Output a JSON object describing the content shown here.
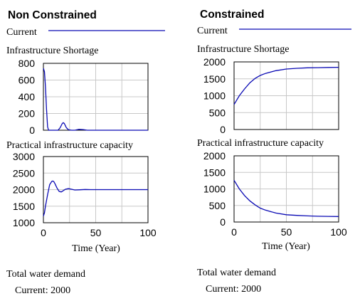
{
  "panels": [
    {
      "title": "Non Constrained",
      "legend_label": "Current",
      "footer_label": "Total water demand",
      "footer_value": "Current: 2000"
    },
    {
      "title": "Constrained",
      "legend_label": "Current",
      "footer_label": "Total water demand",
      "footer_value": "Current: 2000"
    }
  ],
  "chart_data": [
    {
      "type": "line",
      "title": "Infrastructure Shortage",
      "xlabel": "",
      "ylabel": "",
      "xlim": [
        0,
        100
      ],
      "ylim": [
        0,
        800
      ],
      "xticks": [
        0,
        50,
        100
      ],
      "yticks": [
        0,
        200,
        400,
        600,
        800
      ],
      "grid": true,
      "series": [
        {
          "color": "#0a0ab4",
          "x": [
            0,
            1,
            2,
            3,
            4,
            5,
            7,
            10,
            14,
            16,
            18,
            19,
            20,
            22,
            24,
            27,
            30,
            34,
            38,
            42,
            50,
            60,
            70,
            80,
            90,
            100
          ],
          "y": [
            740,
            700,
            520,
            250,
            40,
            0,
            0,
            0,
            0,
            30,
            80,
            90,
            80,
            30,
            5,
            0,
            0,
            10,
            8,
            0,
            0,
            0,
            0,
            0,
            0,
            0
          ]
        }
      ]
    },
    {
      "type": "line",
      "title": "Practical infrastructure capacity",
      "xlabel": "Time (Year)",
      "ylabel": "",
      "xlim": [
        0,
        100
      ],
      "ylim": [
        1000,
        3000
      ],
      "xticks": [
        0,
        50,
        100
      ],
      "yticks": [
        1000,
        1500,
        2000,
        2500,
        3000
      ],
      "grid": true,
      "series": [
        {
          "color": "#0a0ab4",
          "x": [
            0,
            1,
            2,
            4,
            6,
            8,
            9,
            10,
            11,
            13,
            15,
            17,
            19,
            21,
            24,
            27,
            30,
            35,
            40,
            45,
            50,
            60,
            70,
            80,
            90,
            100
          ],
          "y": [
            1200,
            1300,
            1500,
            1850,
            2150,
            2250,
            2260,
            2240,
            2180,
            2050,
            1950,
            1930,
            1970,
            2010,
            2030,
            2010,
            1990,
            1995,
            2005,
            2000,
            2000,
            2000,
            2000,
            2000,
            2000,
            2000
          ]
        }
      ]
    },
    {
      "type": "line",
      "title": "Infrastructure Shortage",
      "xlabel": "",
      "ylabel": "",
      "xlim": [
        0,
        100
      ],
      "ylim": [
        0,
        2000
      ],
      "xticks": [
        0,
        50,
        100
      ],
      "yticks": [
        0,
        500,
        1000,
        1500,
        2000
      ],
      "grid": true,
      "series": [
        {
          "color": "#0a0ab4",
          "x": [
            0,
            5,
            10,
            15,
            20,
            25,
            30,
            40,
            50,
            60,
            70,
            80,
            90,
            100
          ],
          "y": [
            740,
            1000,
            1200,
            1380,
            1510,
            1600,
            1660,
            1740,
            1790,
            1810,
            1825,
            1830,
            1835,
            1840
          ]
        }
      ]
    },
    {
      "type": "line",
      "title": "Practical infrastructure capacity",
      "xlabel": "Time (Year)",
      "ylabel": "",
      "xlim": [
        0,
        100
      ],
      "ylim": [
        0,
        2000
      ],
      "xticks": [
        0,
        50,
        100
      ],
      "yticks": [
        0,
        500,
        1000,
        1500,
        2000
      ],
      "grid": true,
      "series": [
        {
          "color": "#0a0ab4",
          "x": [
            0,
            5,
            10,
            15,
            20,
            25,
            30,
            40,
            50,
            60,
            70,
            80,
            90,
            100
          ],
          "y": [
            1260,
            1000,
            800,
            640,
            520,
            420,
            360,
            270,
            220,
            200,
            185,
            175,
            170,
            165
          ]
        }
      ]
    }
  ]
}
